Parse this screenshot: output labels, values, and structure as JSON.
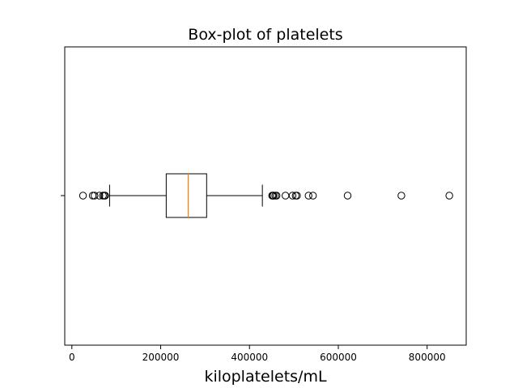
{
  "chart_data": {
    "type": "box",
    "title": "Box-plot of platelets",
    "xlabel": "kiloplatelets/mL",
    "ylabel": "",
    "orientation": "horizontal",
    "xlim": [
      -16000,
      888000
    ],
    "xticks": [
      0,
      200000,
      400000,
      600000,
      800000
    ],
    "xtick_labels": [
      "0",
      "200000",
      "400000",
      "600000",
      "800000"
    ],
    "grid": false,
    "box": {
      "whisker_low": 85000,
      "q1": 212500,
      "median": 262000,
      "q3": 303500,
      "whisker_high": 429000
    },
    "outliers": [
      25100,
      47000,
      51000,
      62000,
      70000,
      73000,
      75000,
      451000,
      453000,
      454000,
      458000,
      461000,
      481000,
      497000,
      504000,
      507000,
      533000,
      543000,
      621000,
      742000,
      850000
    ],
    "colors": {
      "median": "#ff7f0e",
      "box": "#000000",
      "outlier": "#000000"
    }
  }
}
